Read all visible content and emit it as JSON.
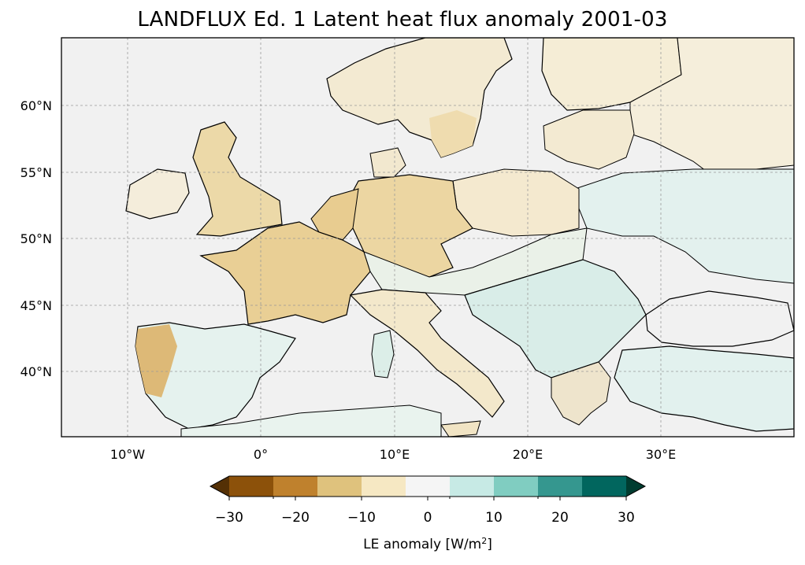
{
  "title": "LANDFLUX Ed. 1 Latent heat flux anomaly 2001-03",
  "map": {
    "lat_labels": [
      "60°N",
      "55°N",
      "50°N",
      "45°N",
      "40°N"
    ],
    "lon_labels": [
      "10°W",
      "0°",
      "10°E",
      "20°E",
      "30°E"
    ],
    "gridlines": true,
    "ocean_color": "#f1f1f1",
    "coastline_color": "#000000"
  },
  "colorbar": {
    "label_main": "LE anomaly [W/m",
    "label_sup": "2",
    "label_end": "]",
    "ticks": [
      "−30",
      "−20",
      "−10",
      "0",
      "10",
      "20",
      "30"
    ],
    "extend": "both",
    "colors": [
      "#543005",
      "#8c510a",
      "#bf812d",
      "#dfc27d",
      "#f6e8c3",
      "#f5f5f5",
      "#c7eae5",
      "#80cdc1",
      "#35978f",
      "#01665e",
      "#003c30"
    ],
    "levels": [
      -30,
      -25,
      -20,
      -15,
      -10,
      -5,
      0,
      5,
      10,
      15,
      20,
      25,
      30
    ]
  }
}
